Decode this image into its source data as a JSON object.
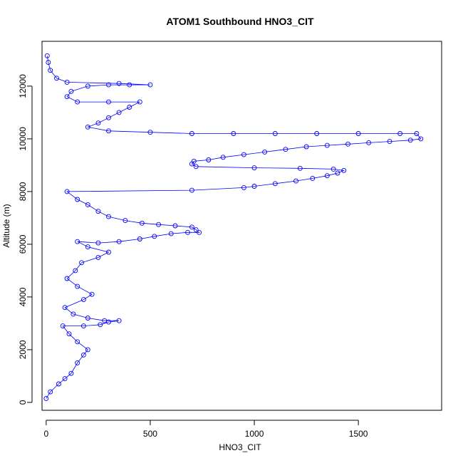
{
  "chart_data": {
    "type": "scatter",
    "title": "ATOM1 Southbound HNO3_CIT",
    "xlabel": "HNO3_CIT",
    "ylabel": "Altitude (m)",
    "xlim": [
      -20,
      1900
    ],
    "ylim": [
      -300,
      13700
    ],
    "xticks": [
      0,
      500,
      1000,
      1500
    ],
    "yticks": [
      0,
      2000,
      4000,
      6000,
      8000,
      10000,
      12000
    ],
    "grid": false,
    "color": "#0000ff",
    "series": [
      {
        "points": [
          [
            0,
            150
          ],
          [
            20,
            400
          ],
          [
            60,
            700
          ],
          [
            90,
            900
          ],
          [
            120,
            1100
          ],
          [
            150,
            1500
          ],
          [
            180,
            1800
          ],
          [
            200,
            2000
          ],
          [
            150,
            2300
          ],
          [
            110,
            2600
          ],
          [
            80,
            2900
          ],
          [
            180,
            2900
          ],
          [
            260,
            2950
          ],
          [
            300,
            3050
          ],
          [
            350,
            3100
          ],
          [
            280,
            3100
          ],
          [
            200,
            3200
          ],
          [
            130,
            3350
          ],
          [
            90,
            3600
          ],
          [
            180,
            3900
          ],
          [
            220,
            4100
          ],
          [
            150,
            4400
          ],
          [
            100,
            4700
          ],
          [
            140,
            5000
          ],
          [
            170,
            5300
          ],
          [
            250,
            5500
          ],
          [
            300,
            5700
          ],
          [
            200,
            5900
          ],
          [
            150,
            6100
          ],
          [
            250,
            6050
          ],
          [
            350,
            6100
          ],
          [
            450,
            6200
          ],
          [
            520,
            6300
          ],
          [
            600,
            6400
          ],
          [
            680,
            6450
          ],
          [
            735,
            6450
          ],
          [
            720,
            6550
          ],
          [
            700,
            6650
          ],
          [
            620,
            6700
          ],
          [
            540,
            6750
          ],
          [
            460,
            6800
          ],
          [
            380,
            6900
          ],
          [
            300,
            7050
          ],
          [
            250,
            7250
          ],
          [
            200,
            7500
          ],
          [
            150,
            7700
          ],
          [
            100,
            8000
          ],
          [
            700,
            8050
          ],
          [
            950,
            8150
          ],
          [
            1000,
            8200
          ],
          [
            1100,
            8300
          ],
          [
            1200,
            8400
          ],
          [
            1280,
            8500
          ],
          [
            1350,
            8600
          ],
          [
            1400,
            8700
          ],
          [
            1430,
            8800
          ],
          [
            1380,
            8850
          ],
          [
            1220,
            8880
          ],
          [
            1000,
            8900
          ],
          [
            720,
            8950
          ],
          [
            700,
            9050
          ],
          [
            710,
            9150
          ],
          [
            780,
            9200
          ],
          [
            850,
            9300
          ],
          [
            950,
            9400
          ],
          [
            1050,
            9500
          ],
          [
            1150,
            9600
          ],
          [
            1250,
            9700
          ],
          [
            1350,
            9750
          ],
          [
            1450,
            9800
          ],
          [
            1550,
            9850
          ],
          [
            1650,
            9900
          ],
          [
            1750,
            9950
          ],
          [
            1800,
            10000
          ],
          [
            1780,
            10200
          ],
          [
            1700,
            10200
          ],
          [
            1500,
            10200
          ],
          [
            1300,
            10200
          ],
          [
            1100,
            10200
          ],
          [
            900,
            10200
          ],
          [
            700,
            10200
          ],
          [
            500,
            10250
          ],
          [
            300,
            10300
          ],
          [
            200,
            10450
          ],
          [
            250,
            10600
          ],
          [
            300,
            10800
          ],
          [
            350,
            11000
          ],
          [
            400,
            11200
          ],
          [
            450,
            11400
          ],
          [
            300,
            11400
          ],
          [
            150,
            11400
          ],
          [
            100,
            11600
          ],
          [
            120,
            11800
          ],
          [
            200,
            12000
          ],
          [
            300,
            12050
          ],
          [
            400,
            12050
          ],
          [
            500,
            12050
          ],
          [
            350,
            12100
          ],
          [
            100,
            12150
          ],
          [
            50,
            12300
          ],
          [
            20,
            12600
          ],
          [
            10,
            12900
          ],
          [
            5,
            13150
          ]
        ]
      }
    ]
  }
}
